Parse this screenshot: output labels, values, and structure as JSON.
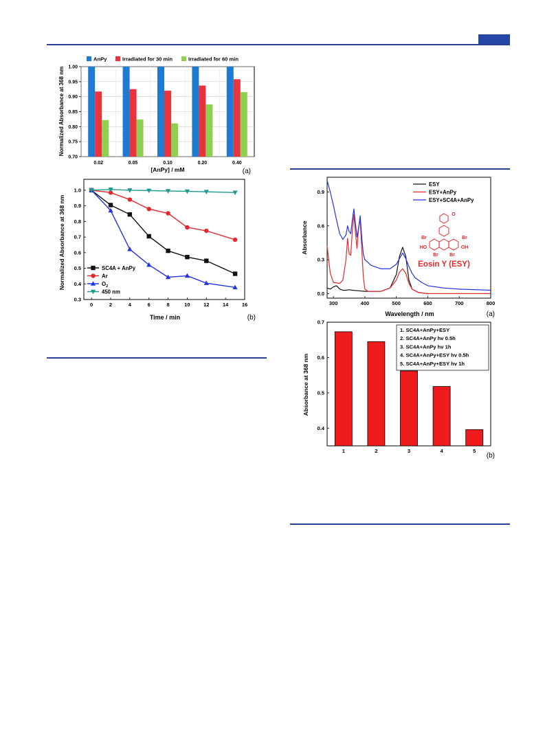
{
  "colors": {
    "rule": "#2a3f8f",
    "tab": "#2747a6"
  },
  "chart_data": [
    {
      "id": "a-left",
      "type": "bar",
      "panel_label": "(a)",
      "xlabel": "[AnPy] / mM",
      "ylabel": "Normalized Absorbance at 368 nm",
      "categories": [
        "0.02",
        "0.05",
        "0.10",
        "0.20",
        "0.40"
      ],
      "ylim": [
        0.7,
        1.0
      ],
      "yticks": [
        "0.70",
        "0.75",
        "0.80",
        "0.85",
        "0.90",
        "0.95",
        "1.00"
      ],
      "legend_position": "top",
      "grid": true,
      "series": [
        {
          "name": "AnPy",
          "color": "#1f7bd1",
          "values": [
            1.0,
            1.0,
            1.0,
            1.0,
            1.0
          ]
        },
        {
          "name": "Irradiated for 30 min",
          "color": "#e8353d",
          "values": [
            0.917,
            0.925,
            0.92,
            0.937,
            0.958
          ]
        },
        {
          "name": "Irradiated for 60 min",
          "color": "#8fd14f",
          "values": [
            0.822,
            0.824,
            0.811,
            0.874,
            0.915
          ]
        }
      ]
    },
    {
      "id": "b-left",
      "type": "line",
      "panel_label": "(b)",
      "xlabel": "Time / min",
      "ylabel": "Normalized Absorbance at 368 nm",
      "xlim": [
        -0.8,
        16
      ],
      "ylim": [
        0.3,
        1.07
      ],
      "xticks": [
        "0",
        "2",
        "4",
        "6",
        "8",
        "10",
        "12",
        "14",
        "16"
      ],
      "yticks": [
        "0.3",
        "0.4",
        "0.5",
        "0.6",
        "0.7",
        "0.8",
        "0.9",
        "1.0"
      ],
      "legend_position": "bottom-left",
      "series": [
        {
          "name": "SC4A + AnPy",
          "color": "#111111",
          "marker": "square",
          "x": [
            0,
            2,
            4,
            6,
            8,
            10,
            12,
            15
          ],
          "y": [
            1.0,
            0.905,
            0.845,
            0.705,
            0.612,
            0.572,
            0.548,
            0.465
          ]
        },
        {
          "name": "Ar",
          "color": "#e8262c",
          "marker": "circle",
          "x": [
            0,
            2,
            4,
            6,
            8,
            10,
            12,
            15
          ],
          "y": [
            1.0,
            0.985,
            0.94,
            0.88,
            0.852,
            0.762,
            0.74,
            0.683
          ]
        },
        {
          "name_prefix": "O",
          "name_sub": "2",
          "color": "#2432e0",
          "marker": "triangle-up",
          "x": [
            0,
            2,
            4,
            6,
            8,
            10,
            12,
            15
          ],
          "y": [
            1.0,
            0.87,
            0.622,
            0.522,
            0.443,
            0.452,
            0.405,
            0.378
          ]
        },
        {
          "name": "450 nm",
          "color": "#1f9a8e",
          "marker": "triangle-down",
          "x": [
            0,
            2,
            4,
            6,
            8,
            10,
            12,
            15
          ],
          "y": [
            1.0,
            1.005,
            1.0,
            0.998,
            0.995,
            0.993,
            0.99,
            0.985
          ]
        }
      ]
    },
    {
      "id": "a-right",
      "type": "line",
      "panel_label": "(a)",
      "xlabel": "Wavelength / nm",
      "ylabel": "Absorbance",
      "xlim": [
        280,
        800
      ],
      "ylim": [
        -0.04,
        1.03
      ],
      "xticks": [
        "300",
        "400",
        "500",
        "600",
        "700",
        "800"
      ],
      "yticks": [
        "0.0",
        "0.3",
        "0.6",
        "0.9"
      ],
      "legend_position": "top-right",
      "annotation": {
        "name": "Eosin Y (ESY)",
        "substituents": [
          "Br",
          "Br",
          "Br",
          "Br",
          "HO",
          "OH",
          "O"
        ],
        "color": "#e8262c"
      },
      "series": [
        {
          "name": "ESY",
          "color": "#111111",
          "x": [
            280,
            290,
            300,
            310,
            320,
            330,
            340,
            350,
            360,
            380,
            400,
            450,
            480,
            500,
            510,
            520,
            530,
            540,
            550,
            570,
            600,
            700,
            800
          ],
          "y": [
            0.05,
            0.04,
            0.06,
            0.07,
            0.04,
            0.03,
            0.03,
            0.035,
            0.03,
            0.025,
            0.02,
            0.02,
            0.05,
            0.17,
            0.33,
            0.41,
            0.33,
            0.12,
            0.04,
            0.01,
            0.0,
            0.0,
            0.0
          ]
        },
        {
          "name": "ESY+AnPy",
          "color": "#e8262c",
          "x": [
            280,
            290,
            300,
            320,
            330,
            340,
            345,
            350,
            355,
            360,
            365,
            370,
            375,
            380,
            385,
            390,
            395,
            400,
            410,
            450,
            480,
            500,
            510,
            520,
            530,
            540,
            550,
            570,
            600,
            700,
            800
          ],
          "y": [
            0.42,
            0.18,
            0.1,
            0.09,
            0.12,
            0.3,
            0.49,
            0.35,
            0.34,
            0.55,
            0.7,
            0.54,
            0.4,
            0.58,
            0.66,
            0.4,
            0.15,
            0.04,
            0.02,
            0.02,
            0.05,
            0.12,
            0.19,
            0.22,
            0.18,
            0.09,
            0.04,
            0.01,
            0.0,
            0.0,
            0.0
          ]
        },
        {
          "name": "ESY+SC4A+AnPy",
          "color": "#2432e0",
          "x": [
            280,
            290,
            300,
            310,
            320,
            330,
            340,
            345,
            350,
            355,
            360,
            365,
            370,
            375,
            380,
            385,
            390,
            395,
            400,
            420,
            450,
            480,
            500,
            510,
            520,
            530,
            540,
            550,
            560,
            580,
            600,
            650,
            700,
            800
          ],
          "y": [
            1.0,
            0.9,
            0.78,
            0.65,
            0.53,
            0.48,
            0.52,
            0.6,
            0.55,
            0.53,
            0.65,
            0.75,
            0.62,
            0.5,
            0.58,
            0.69,
            0.5,
            0.35,
            0.3,
            0.25,
            0.22,
            0.22,
            0.26,
            0.31,
            0.36,
            0.31,
            0.24,
            0.18,
            0.14,
            0.1,
            0.07,
            0.05,
            0.04,
            0.03
          ]
        }
      ]
    },
    {
      "id": "b-right",
      "type": "bar",
      "panel_label": "(b)",
      "xlabel": "",
      "ylabel": "Absorbance at 368 nm",
      "categories": [
        "1",
        "2",
        "3",
        "4",
        "5"
      ],
      "ylim": [
        0.35,
        0.7
      ],
      "yticks": [
        "0.4",
        "0.5",
        "0.6",
        "0.7"
      ],
      "legend_position": "top-right",
      "color": "#ee1c1c",
      "values": [
        0.673,
        0.645,
        0.562,
        0.518,
        0.396
      ],
      "legend_entries": [
        "1. SC4A+AnPy+ESY",
        "2. SC4A+AnPy hv 0.5h",
        "3. SC4A+AnPy hv 1h",
        "4. SC4A+AnPy+ESY hv 0.5h",
        "5. SC4A+AnPy+ESY hv 1h"
      ]
    }
  ]
}
